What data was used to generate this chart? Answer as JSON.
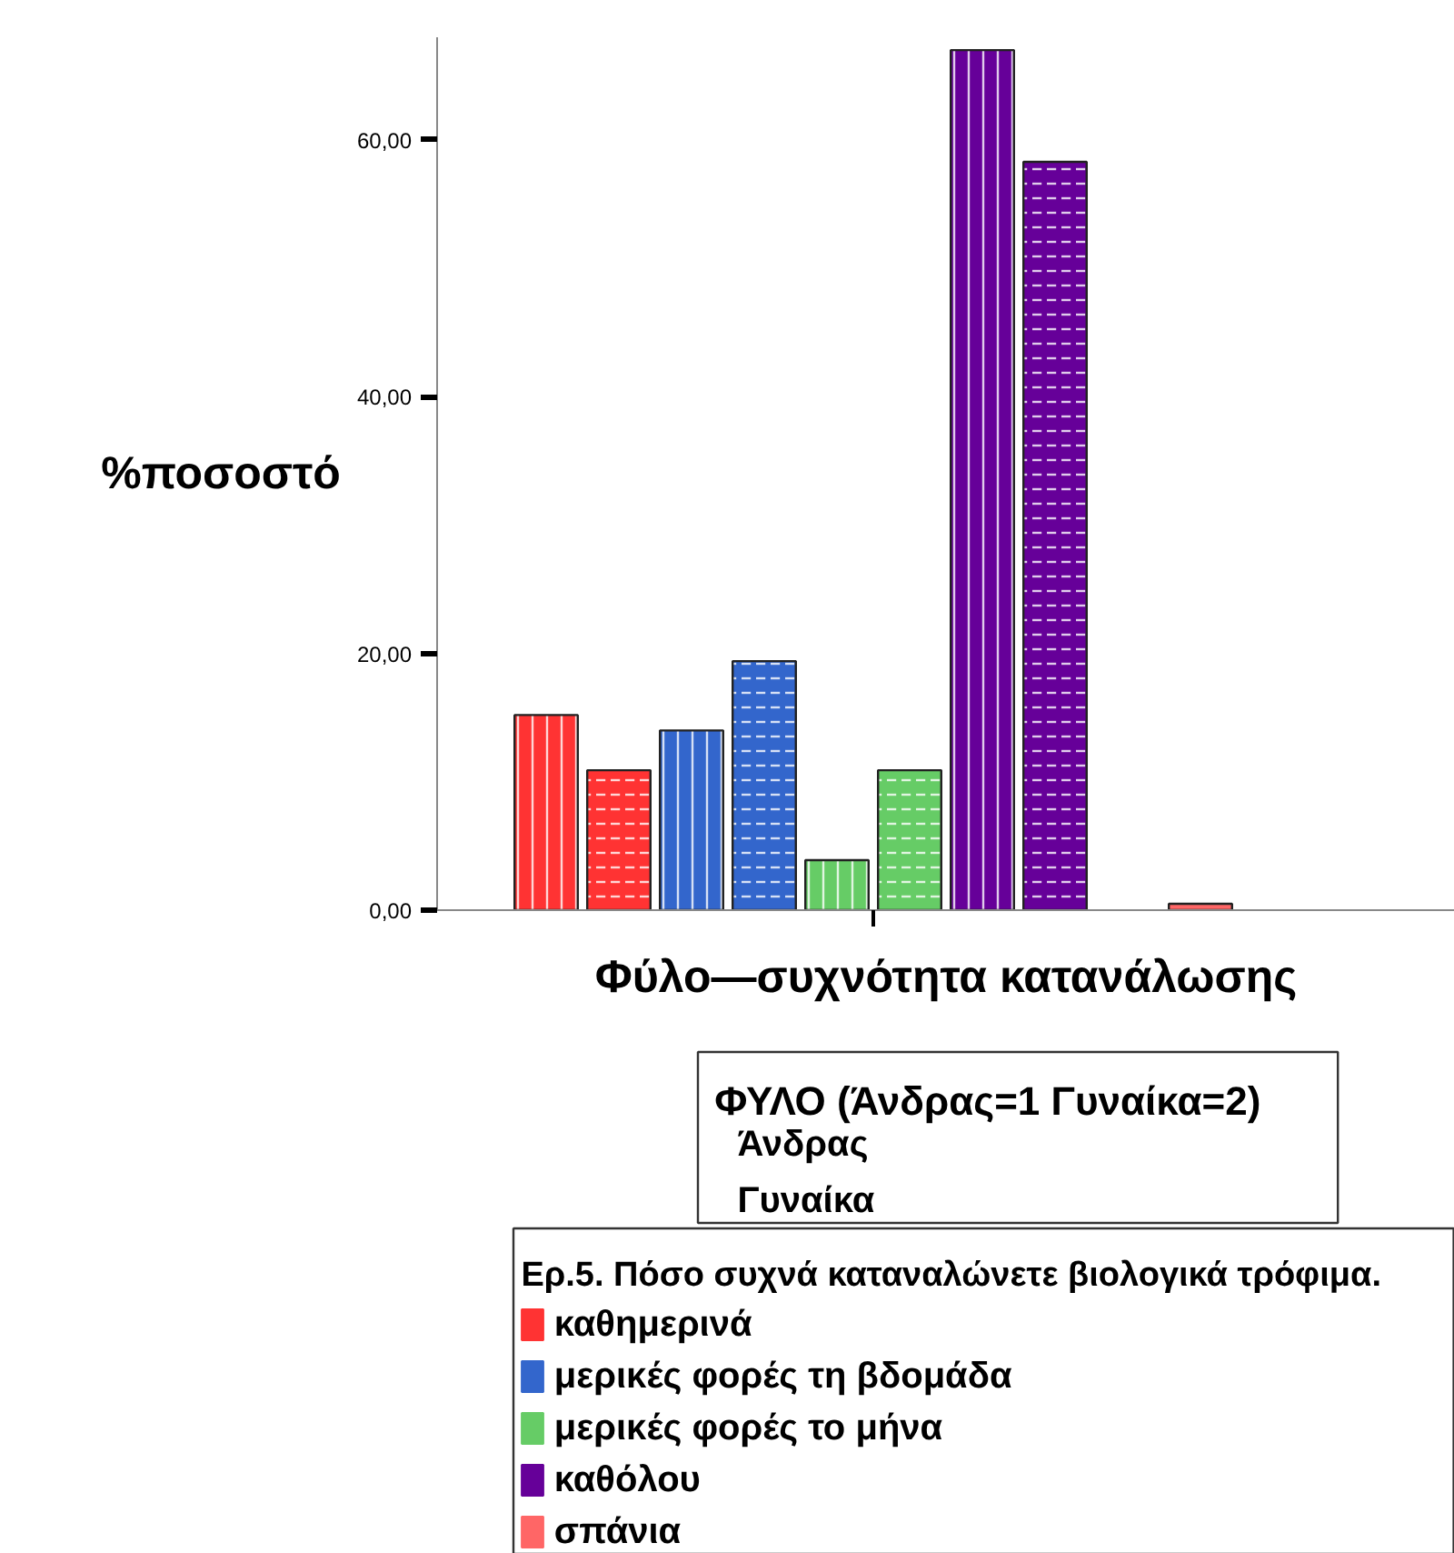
{
  "chart_data": {
    "type": "bar",
    "stacked": true,
    "ylabel": "%ποσοστό",
    "xlabel": "Φύλο—συχνότητα κατανάλωσης",
    "legend_title": "Ερ.5. Πόσο συχνά καταναλώνετε βιολογικά τρόφιμα.",
    "annotations": [
      "ΦΥΛΟ  (Άνδρας=1  Γυναίκα=2)",
      "Άνδρας",
      "Γυναίκα"
    ],
    "categories": [
      null,
      null,
      null,
      null,
      null,
      null,
      null,
      null,
      null,
      null,
      null,
      null,
      null,
      null
    ],
    "series": [
      {
        "name": "καθημερινά",
        "color": "#ff3333",
        "values": [
          null,
          15.2,
          10.9,
          null,
          null,
          null,
          null,
          null,
          null,
          null,
          null,
          null,
          null,
          null
        ]
      },
      {
        "name": "μερικές φορές τη βδομάδα",
        "color": "#3366cc",
        "values": [
          null,
          null,
          null,
          14.0,
          19.4,
          null,
          null,
          null,
          null,
          null,
          null,
          null,
          null,
          null
        ]
      },
      {
        "name": "μερικές φορές το μήνα",
        "color": "#66cc66",
        "values": [
          null,
          null,
          null,
          null,
          null,
          3.9,
          10.9,
          null,
          null,
          null,
          null,
          null,
          null,
          null
        ]
      },
      {
        "name": "καθόλου",
        "color": "#660099",
        "values": [
          null,
          null,
          null,
          null,
          null,
          null,
          null,
          67.0,
          58.3,
          null,
          null,
          null,
          null,
          null
        ]
      },
      {
        "name": "σπάνια",
        "color": "#ff6666",
        "values": [
          null,
          null,
          null,
          null,
          null,
          null,
          null,
          null,
          null,
          null,
          0.5,
          null,
          null,
          null
        ]
      }
    ],
    "ylim": [
      0,
      68
    ],
    "yticks": [
      {
        "value": 0,
        "label": "0,00"
      },
      {
        "value": 20,
        "label": "20,00"
      },
      {
        "value": 40,
        "label": "40,00"
      },
      {
        "value": 60,
        "label": "60,00"
      }
    ],
    "grid": false,
    "legend": "bottom",
    "tick_labels": "y"
  }
}
